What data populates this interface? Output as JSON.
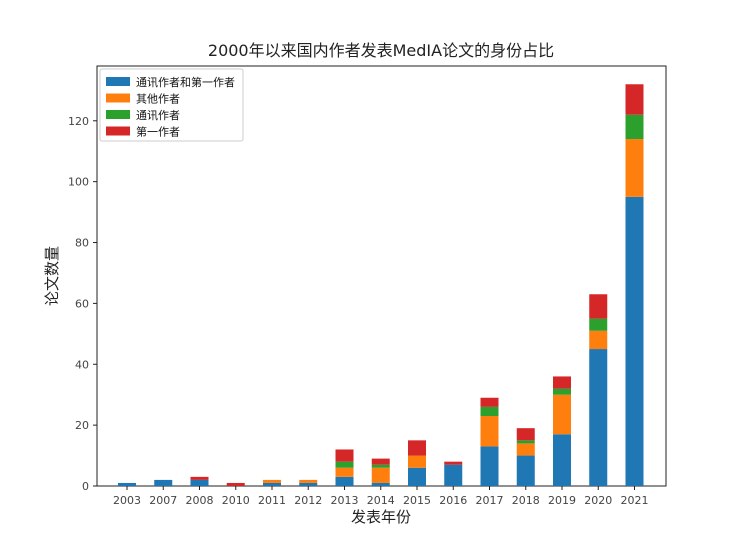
{
  "chart_data": {
    "type": "bar",
    "stacked": true,
    "title": "2000年以来国内作者发表MedIA论文的身份占比",
    "xlabel": "发表年份",
    "ylabel": "论文数量",
    "ylim": [
      0,
      138
    ],
    "yticks": [
      0,
      20,
      40,
      60,
      80,
      100,
      120
    ],
    "legend_position": "top-left",
    "categories": [
      "2003",
      "2007",
      "2008",
      "2010",
      "2011",
      "2012",
      "2013",
      "2014",
      "2015",
      "2016",
      "2017",
      "2018",
      "2019",
      "2020",
      "2021"
    ],
    "series": [
      {
        "name": "通讯作者和第一作者",
        "color": "#1f77b4",
        "values": [
          1,
          2,
          2,
          0,
          1,
          1,
          3,
          1,
          6,
          7,
          13,
          10,
          17,
          45,
          95
        ]
      },
      {
        "name": "其他作者",
        "color": "#ff7f0e",
        "values": [
          0,
          0,
          0,
          0,
          1,
          1,
          3,
          5,
          4,
          0,
          10,
          4,
          13,
          6,
          19
        ]
      },
      {
        "name": "通讯作者",
        "color": "#2ca02c",
        "values": [
          0,
          0,
          0,
          0,
          0,
          0,
          2,
          1,
          0,
          0,
          3,
          1,
          2,
          4,
          8
        ]
      },
      {
        "name": "第一作者",
        "color": "#d62728",
        "values": [
          0,
          0,
          1,
          1,
          0,
          0,
          4,
          2,
          5,
          1,
          3,
          4,
          4,
          8,
          10
        ]
      }
    ]
  }
}
